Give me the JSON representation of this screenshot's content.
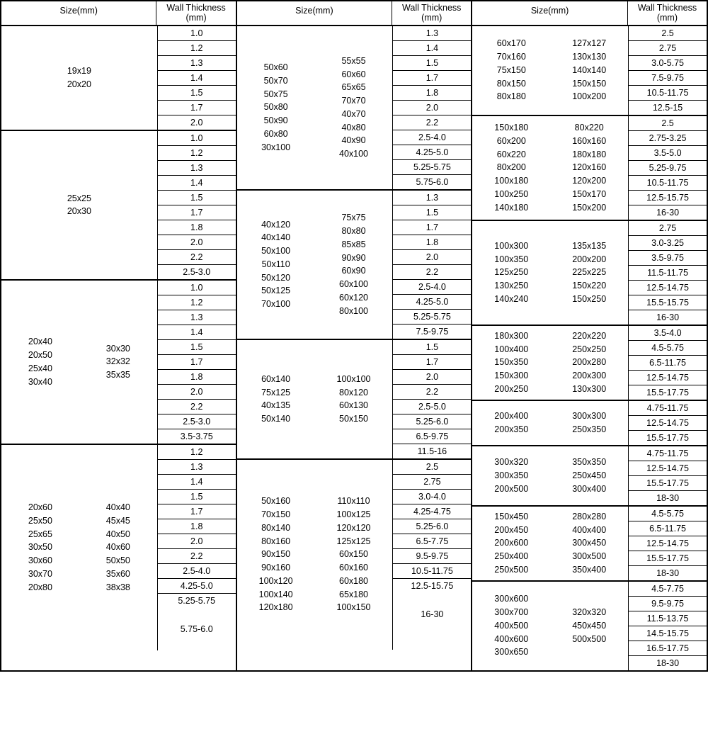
{
  "header": {
    "size": "Size(mm)",
    "wt": "Wall Thickness (mm)"
  },
  "panels": [
    {
      "groups": [
        {
          "sizes": [
            [
              "19x19",
              "20x20"
            ]
          ],
          "wt": [
            "1.0",
            "1.2",
            "1.3",
            "1.4",
            "1.5",
            "1.7",
            "2.0"
          ]
        },
        {
          "sizes": [
            [
              "25x25",
              "20x30"
            ]
          ],
          "wt": [
            "1.0",
            "1.2",
            "1.3",
            "1.4",
            "1.5",
            "1.7",
            "1.8",
            "2.0",
            "2.2",
            "2.5-3.0"
          ]
        },
        {
          "sizes": [
            [
              "20x40",
              "20x50",
              "25x40",
              "30x40"
            ],
            [
              "30x30",
              "32x32",
              "35x35"
            ]
          ],
          "wt": [
            "1.0",
            "1.2",
            "1.3",
            "1.4",
            "1.5",
            "1.7",
            "1.8",
            "2.0",
            "2.2",
            "2.5-3.0",
            "3.5-3.75"
          ]
        },
        {
          "sizes": [
            [
              "20x60",
              "25x50",
              "25x65",
              "30x50",
              "30x60",
              "30x70",
              "20x80"
            ],
            [
              "40x40",
              "45x45",
              "40x50",
              "40x60",
              "50x50",
              "35x60",
              "38x38"
            ]
          ],
          "wt": [
            "1.2",
            "1.3",
            "1.4",
            "1.5",
            "1.7",
            "1.8",
            "2.0",
            "2.2",
            "2.5-4.0",
            "4.25-5.0",
            "5.25-5.75",
            "",
            "5.75-6.0",
            ""
          ]
        }
      ]
    },
    {
      "groups": [
        {
          "sizes": [
            [
              "50x60",
              "50x70",
              "50x75",
              "50x80",
              "50x90",
              "60x80",
              "30x100"
            ],
            [
              "55x55",
              "60x60",
              "65x65",
              "70x70",
              "40x70",
              "40x80",
              "40x90",
              "40x100"
            ]
          ],
          "wt": [
            "1.3",
            "1.4",
            "1.5",
            "1.7",
            "1.8",
            "2.0",
            "2.2",
            "2.5-4.0",
            "4.25-5.0",
            "5.25-5.75",
            "5.75-6.0"
          ]
        },
        {
          "sizes": [
            [
              "40x120",
              "40x140",
              "50x100",
              "50x110",
              "50x120",
              "50x125",
              "70x100"
            ],
            [
              "75x75",
              "80x80",
              "85x85",
              "90x90",
              "60x90",
              "60x100",
              "60x120",
              "80x100"
            ]
          ],
          "wt": [
            "1.3",
            "1.5",
            "1.7",
            "1.8",
            "2.0",
            "2.2",
            "2.5-4.0",
            "4.25-5.0",
            "5.25-5.75",
            "7.5-9.75"
          ]
        },
        {
          "sizes": [
            [
              "60x140",
              "75x125",
              "40x135",
              "50x140"
            ],
            [
              "100x100",
              "80x120",
              "60x130",
              "50x150"
            ]
          ],
          "wt": [
            "1.5",
            "1.7",
            "2.0",
            "2.2",
            "2.5-5.0",
            "5.25-6.0",
            "6.5-9.75",
            "11.5-16"
          ]
        },
        {
          "sizes": [
            [
              "50x160",
              "70x150",
              "80x140",
              "80x160",
              "90x150",
              "90x160",
              "100x120",
              "100x140",
              "120x180"
            ],
            [
              "110x110",
              "100x125",
              "120x120",
              "125x125",
              "60x150",
              "60x160",
              "60x180",
              "65x180",
              "100x150"
            ]
          ],
          "wt": [
            "2.5",
            "2.75",
            "3.0-4.0",
            "4.25-4.75",
            "5.25-6.0",
            "6.5-7.75",
            "9.5-9.75",
            "10.5-11.75",
            "12.5-15.75",
            "",
            "16-30",
            "",
            ""
          ]
        }
      ]
    },
    {
      "groups": [
        {
          "sizes": [
            [
              "60x170",
              "70x160",
              "75x150",
              "80x150",
              "80x180"
            ],
            [
              "127x127",
              "130x130",
              "140x140",
              "150x150",
              "100x200"
            ]
          ],
          "wt": [
            "2.5",
            "2.75",
            "3.0-5.75",
            "7.5-9.75",
            "10.5-11.75",
            "12.5-15"
          ]
        },
        {
          "sizes": [
            [
              "150x180",
              "60x200",
              "60x220",
              "80x200",
              "100x180",
              "100x250",
              "140x180"
            ],
            [
              "80x220",
              "160x160",
              "180x180",
              "120x160",
              "120x200",
              "150x170",
              "150x200"
            ]
          ],
          "wt": [
            "2.5",
            "2.75-3.25",
            "3.5-5.0",
            "5.25-9.75",
            "10.5-11.75",
            "12.5-15.75",
            "16-30"
          ]
        },
        {
          "sizes": [
            [
              "100x300",
              "100x350",
              "125x250",
              "130x250",
              "140x240"
            ],
            [
              "135x135",
              "200x200",
              "225x225",
              "150x220",
              "150x250"
            ]
          ],
          "wt": [
            "2.75",
            "3.0-3.25",
            "3.5-9.75",
            "11.5-11.75",
            "12.5-14.75",
            "15.5-15.75",
            "16-30"
          ]
        },
        {
          "sizes": [
            [
              "180x300",
              "100x400",
              "150x350",
              "150x300",
              "200x250"
            ],
            [
              "220x220",
              "250x250",
              "200x280",
              "200x300",
              "130x300"
            ]
          ],
          "wt": [
            "3.5-4.0",
            "4.5-5.75",
            "6.5-11.75",
            "12.5-14.75",
            "15.5-17.75"
          ]
        },
        {
          "sizes": [
            [
              "200x400",
              "200x350"
            ],
            [
              "300x300",
              "250x350"
            ]
          ],
          "wt": [
            "4.75-11.75",
            "12.5-14.75",
            "15.5-17.75"
          ]
        },
        {
          "sizes": [
            [
              "300x320",
              "300x350",
              "200x500"
            ],
            [
              "350x350",
              "250x450",
              "300x400"
            ]
          ],
          "wt": [
            "4.75-11.75",
            "12.5-14.75",
            "15.5-17.75",
            "18-30"
          ]
        },
        {
          "sizes": [
            [
              "150x450",
              "200x450",
              "200x600",
              "250x400",
              "250x500"
            ],
            [
              "280x280",
              "400x400",
              "300x450",
              "300x500",
              "350x400"
            ]
          ],
          "wt": [
            "4.5-5.75",
            "6.5-11.75",
            "12.5-14.75",
            "15.5-17.75",
            "18-30"
          ]
        },
        {
          "sizes": [
            [
              "300x600",
              "300x700",
              "400x500",
              "400x600",
              "300x650"
            ],
            [
              "320x320",
              "450x450",
              "500x500"
            ]
          ],
          "wt": [
            "4.5-7.75",
            "9.5-9.75",
            "11.5-13.75",
            "14.5-15.75",
            "16.5-17.75",
            "18-30"
          ]
        }
      ]
    }
  ]
}
